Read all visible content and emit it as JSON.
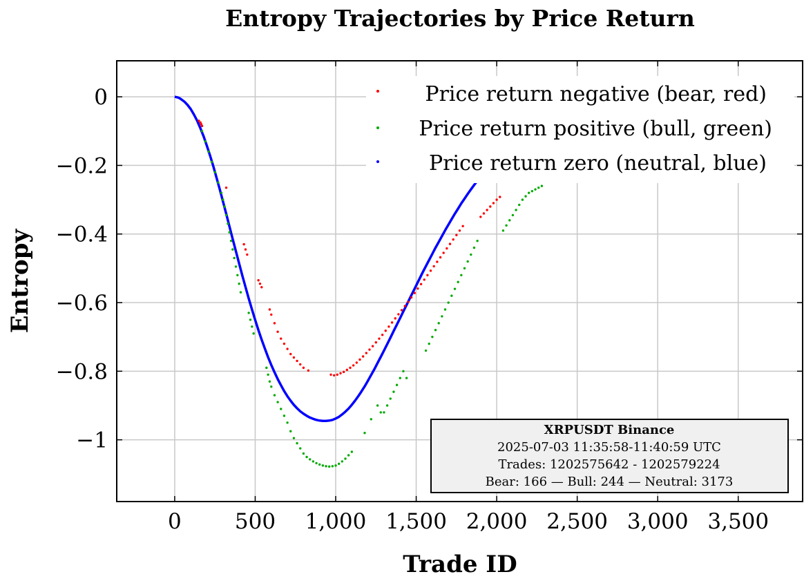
{
  "chart_data": {
    "type": "scatter",
    "title": "Entropy Trajectories by Price Return",
    "xlabel": "Trade ID",
    "ylabel": "Entropy",
    "xlim": [
      -360,
      3900
    ],
    "ylim": [
      -1.18,
      0.105
    ],
    "x_ticks": [
      0,
      500,
      1000,
      1500,
      2000,
      2500,
      3000,
      3500
    ],
    "x_tick_labels": [
      "0",
      "500",
      "1,000",
      "1,500",
      "2,000",
      "2,500",
      "3,000",
      "3,500"
    ],
    "y_ticks": [
      0,
      -0.2,
      -0.4,
      -0.6,
      -0.8,
      -1
    ],
    "y_tick_labels": [
      "0",
      "−0.2",
      "−0.4",
      "−0.6",
      "−0.8",
      "−1"
    ],
    "grid": true,
    "legend_position": "top-right",
    "series": [
      {
        "name": "Price return negative (bear, red)",
        "color": "#ff0000",
        "points": [
          [
            150,
            -0.07
          ],
          [
            160,
            -0.075
          ],
          [
            165,
            -0.08
          ],
          [
            170,
            -0.085
          ],
          [
            320,
            -0.265
          ],
          [
            430,
            -0.43
          ],
          [
            440,
            -0.445
          ],
          [
            450,
            -0.46
          ],
          [
            520,
            -0.535
          ],
          [
            530,
            -0.545
          ],
          [
            540,
            -0.555
          ],
          [
            590,
            -0.62
          ],
          [
            600,
            -0.635
          ],
          [
            620,
            -0.66
          ],
          [
            640,
            -0.685
          ],
          [
            660,
            -0.705
          ],
          [
            680,
            -0.72
          ],
          [
            700,
            -0.735
          ],
          [
            720,
            -0.75
          ],
          [
            740,
            -0.76
          ],
          [
            760,
            -0.77
          ],
          [
            780,
            -0.78
          ],
          [
            800,
            -0.79
          ],
          [
            830,
            -0.798
          ],
          [
            970,
            -0.81
          ],
          [
            990,
            -0.812
          ],
          [
            1010,
            -0.81
          ],
          [
            1030,
            -0.806
          ],
          [
            1050,
            -0.802
          ],
          [
            1070,
            -0.796
          ],
          [
            1090,
            -0.79
          ],
          [
            1110,
            -0.783
          ],
          [
            1130,
            -0.775
          ],
          [
            1150,
            -0.766
          ],
          [
            1170,
            -0.757
          ],
          [
            1190,
            -0.747
          ],
          [
            1210,
            -0.737
          ],
          [
            1230,
            -0.727
          ],
          [
            1250,
            -0.716
          ],
          [
            1270,
            -0.705
          ],
          [
            1290,
            -0.694
          ],
          [
            1310,
            -0.682
          ],
          [
            1330,
            -0.67
          ],
          [
            1350,
            -0.658
          ],
          [
            1370,
            -0.646
          ],
          [
            1390,
            -0.634
          ],
          [
            1410,
            -0.622
          ],
          [
            1430,
            -0.61
          ],
          [
            1450,
            -0.598
          ],
          [
            1470,
            -0.585
          ],
          [
            1490,
            -0.572
          ],
          [
            1510,
            -0.559
          ],
          [
            1530,
            -0.546
          ],
          [
            1550,
            -0.533
          ],
          [
            1570,
            -0.52
          ],
          [
            1590,
            -0.507
          ],
          [
            1610,
            -0.494
          ],
          [
            1630,
            -0.481
          ],
          [
            1650,
            -0.468
          ],
          [
            1670,
            -0.455
          ],
          [
            1690,
            -0.442
          ],
          [
            1710,
            -0.429
          ],
          [
            1730,
            -0.416
          ],
          [
            1750,
            -0.403
          ],
          [
            1770,
            -0.39
          ],
          [
            1790,
            -0.377
          ],
          [
            1900,
            -0.35
          ],
          [
            1920,
            -0.34
          ],
          [
            1940,
            -0.33
          ],
          [
            1960,
            -0.32
          ],
          [
            1980,
            -0.31
          ],
          [
            2000,
            -0.3
          ],
          [
            2020,
            -0.292
          ]
        ]
      },
      {
        "name": "Price return positive (bull, green)",
        "color": "#00aa00",
        "points": [
          [
            170,
            -0.1
          ],
          [
            190,
            -0.13
          ],
          [
            210,
            -0.16
          ],
          [
            230,
            -0.19
          ],
          [
            250,
            -0.22
          ],
          [
            270,
            -0.25
          ],
          [
            290,
            -0.28
          ],
          [
            300,
            -0.3
          ],
          [
            310,
            -0.32
          ],
          [
            320,
            -0.345
          ],
          [
            330,
            -0.37
          ],
          [
            340,
            -0.395
          ],
          [
            350,
            -0.42
          ],
          [
            360,
            -0.445
          ],
          [
            370,
            -0.47
          ],
          [
            380,
            -0.495
          ],
          [
            390,
            -0.52
          ],
          [
            400,
            -0.545
          ],
          [
            410,
            -0.57
          ],
          [
            460,
            -0.63
          ],
          [
            470,
            -0.65
          ],
          [
            480,
            -0.67
          ],
          [
            490,
            -0.69
          ],
          [
            570,
            -0.79
          ],
          [
            580,
            -0.81
          ],
          [
            590,
            -0.83
          ],
          [
            600,
            -0.845
          ],
          [
            620,
            -0.87
          ],
          [
            640,
            -0.89
          ],
          [
            660,
            -0.91
          ],
          [
            680,
            -0.93
          ],
          [
            700,
            -0.95
          ],
          [
            720,
            -0.975
          ],
          [
            740,
            -0.995
          ],
          [
            760,
            -1.01
          ],
          [
            780,
            -1.025
          ],
          [
            800,
            -1.04
          ],
          [
            820,
            -1.05
          ],
          [
            840,
            -1.057
          ],
          [
            860,
            -1.063
          ],
          [
            880,
            -1.068
          ],
          [
            900,
            -1.072
          ],
          [
            920,
            -1.075
          ],
          [
            940,
            -1.077
          ],
          [
            960,
            -1.078
          ],
          [
            980,
            -1.077
          ],
          [
            1000,
            -1.075
          ],
          [
            1020,
            -1.07
          ],
          [
            1040,
            -1.063
          ],
          [
            1060,
            -1.055
          ],
          [
            1080,
            -1.045
          ],
          [
            1100,
            -1.035
          ],
          [
            1180,
            -0.98
          ],
          [
            1220,
            -0.94
          ],
          [
            1260,
            -0.9
          ],
          [
            1280,
            -0.92
          ],
          [
            1300,
            -0.92
          ],
          [
            1320,
            -0.9
          ],
          [
            1340,
            -0.88
          ],
          [
            1360,
            -0.86
          ],
          [
            1380,
            -0.84
          ],
          [
            1400,
            -0.82
          ],
          [
            1420,
            -0.8
          ],
          [
            1440,
            -0.82
          ],
          [
            1560,
            -0.74
          ],
          [
            1580,
            -0.72
          ],
          [
            1600,
            -0.7
          ],
          [
            1620,
            -0.68
          ],
          [
            1640,
            -0.66
          ],
          [
            1660,
            -0.64
          ],
          [
            1680,
            -0.62
          ],
          [
            1700,
            -0.6
          ],
          [
            1720,
            -0.58
          ],
          [
            1740,
            -0.56
          ],
          [
            1760,
            -0.54
          ],
          [
            1780,
            -0.52
          ],
          [
            1800,
            -0.5
          ],
          [
            1820,
            -0.48
          ],
          [
            1840,
            -0.46
          ],
          [
            1860,
            -0.44
          ],
          [
            1880,
            -0.42
          ],
          [
            2040,
            -0.39
          ],
          [
            2060,
            -0.375
          ],
          [
            2080,
            -0.36
          ],
          [
            2100,
            -0.345
          ],
          [
            2120,
            -0.33
          ],
          [
            2140,
            -0.315
          ],
          [
            2160,
            -0.3
          ],
          [
            2180,
            -0.29
          ],
          [
            2200,
            -0.28
          ],
          [
            2220,
            -0.275
          ],
          [
            2240,
            -0.27
          ],
          [
            2260,
            -0.265
          ],
          [
            2280,
            -0.26
          ]
        ]
      },
      {
        "name": "Price return zero (neutral, blue)",
        "color": "#0000ff",
        "line_x": [
          0,
          10,
          20,
          30,
          40,
          60,
          80,
          100,
          120,
          140,
          160,
          180,
          200,
          220,
          240,
          260,
          280,
          300,
          320,
          340,
          360,
          380,
          400,
          420,
          440,
          460,
          480,
          500,
          520,
          540,
          560,
          580,
          600,
          620,
          640,
          660,
          680,
          700,
          720,
          740,
          760,
          780,
          800,
          820,
          840,
          860,
          880,
          900,
          920,
          940,
          960,
          980,
          1000,
          1020,
          1040,
          1060,
          1080,
          1100,
          1120,
          1140,
          1160,
          1180,
          1200,
          1220,
          1240,
          1260,
          1280,
          1300,
          1320,
          1340,
          1360,
          1380,
          1400,
          1420,
          1440,
          1460,
          1480,
          1500,
          1520,
          1540,
          1560,
          1580,
          1600,
          1620,
          1640,
          1660,
          1680,
          1700,
          1720,
          1740,
          1760,
          1780,
          1800,
          1820,
          1840,
          1860,
          1880,
          1900,
          1920,
          1940,
          1960,
          1980,
          2000,
          2020,
          2040,
          2060,
          2080,
          2100,
          2120,
          2140,
          2160,
          2180,
          2200,
          2215
        ],
        "line_y": [
          0,
          -0.001,
          -0.002,
          -0.004,
          -0.007,
          -0.014,
          -0.024,
          -0.036,
          -0.052,
          -0.07,
          -0.092,
          -0.116,
          -0.143,
          -0.172,
          -0.203,
          -0.236,
          -0.27,
          -0.305,
          -0.341,
          -0.378,
          -0.414,
          -0.45,
          -0.486,
          -0.521,
          -0.555,
          -0.588,
          -0.62,
          -0.651,
          -0.68,
          -0.708,
          -0.734,
          -0.759,
          -0.782,
          -0.803,
          -0.823,
          -0.841,
          -0.858,
          -0.873,
          -0.886,
          -0.898,
          -0.908,
          -0.917,
          -0.924,
          -0.93,
          -0.935,
          -0.939,
          -0.942,
          -0.944,
          -0.945,
          -0.945,
          -0.944,
          -0.942,
          -0.938,
          -0.933,
          -0.926,
          -0.918,
          -0.909,
          -0.898,
          -0.886,
          -0.873,
          -0.859,
          -0.844,
          -0.828,
          -0.811,
          -0.794,
          -0.776,
          -0.758,
          -0.74,
          -0.721,
          -0.702,
          -0.683,
          -0.664,
          -0.645,
          -0.626,
          -0.607,
          -0.588,
          -0.569,
          -0.55,
          -0.531,
          -0.512,
          -0.494,
          -0.476,
          -0.458,
          -0.44,
          -0.423,
          -0.406,
          -0.389,
          -0.373,
          -0.357,
          -0.341,
          -0.326,
          -0.311,
          -0.297,
          -0.283,
          -0.27,
          -0.257,
          -0.245,
          -0.233,
          -0.222,
          -0.211,
          -0.201,
          -0.191,
          -0.182,
          -0.173,
          -0.165,
          -0.157,
          -0.15,
          -0.143,
          -0.136,
          -0.13,
          -0.125,
          -0.12,
          -0.115,
          -0.11,
          -0.106,
          -0.102
        ]
      }
    ],
    "info_box": {
      "title": "XRPUSDT Binance",
      "line1": "2025-07-03 11:35:58-11:40:59 UTC",
      "line2": "Trades: 1202575642 - 1202579224",
      "line3": "Bear: 166 — Bull: 244 — Neutral: 3173"
    }
  }
}
